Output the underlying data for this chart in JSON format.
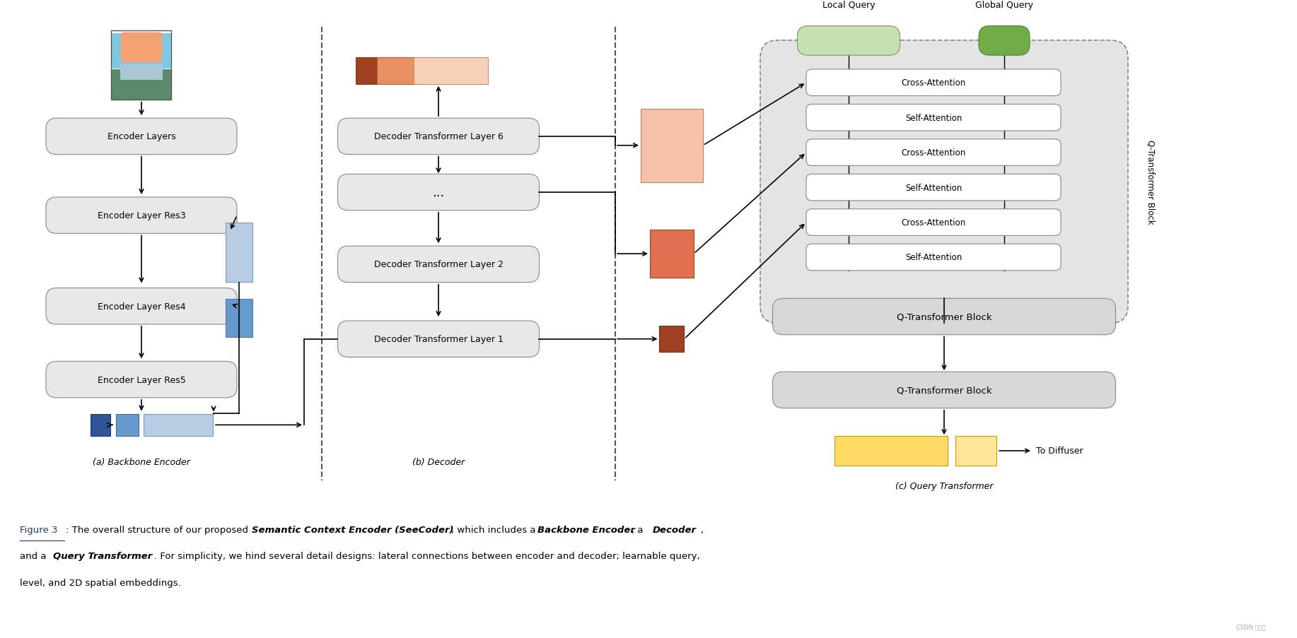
{
  "fig_width": 18.34,
  "fig_height": 9.04,
  "bg_color": "#ffffff",
  "box_color_light_gray": "#e8e8e8",
  "box_color_mid_gray": "#d0d0d0",
  "box_edge_color": "#888888",
  "blue_light": "#b8cce4",
  "blue_mid": "#6699cc",
  "blue_dark": "#2f5597",
  "salmon_light": "#f4c2a8",
  "salmon_mid": "#e07050",
  "salmon_dark": "#a04020",
  "green_light": "#c6e0b4",
  "green_dark": "#70ad47",
  "yellow_light": "#ffd966",
  "yellow_lighter": "#ffe599",
  "caption_color": "#1f3864",
  "section_a_label": "(a) Backbone Encoder",
  "section_b_label": "(b) Decoder",
  "section_c_label": "(c) Query Transformer"
}
